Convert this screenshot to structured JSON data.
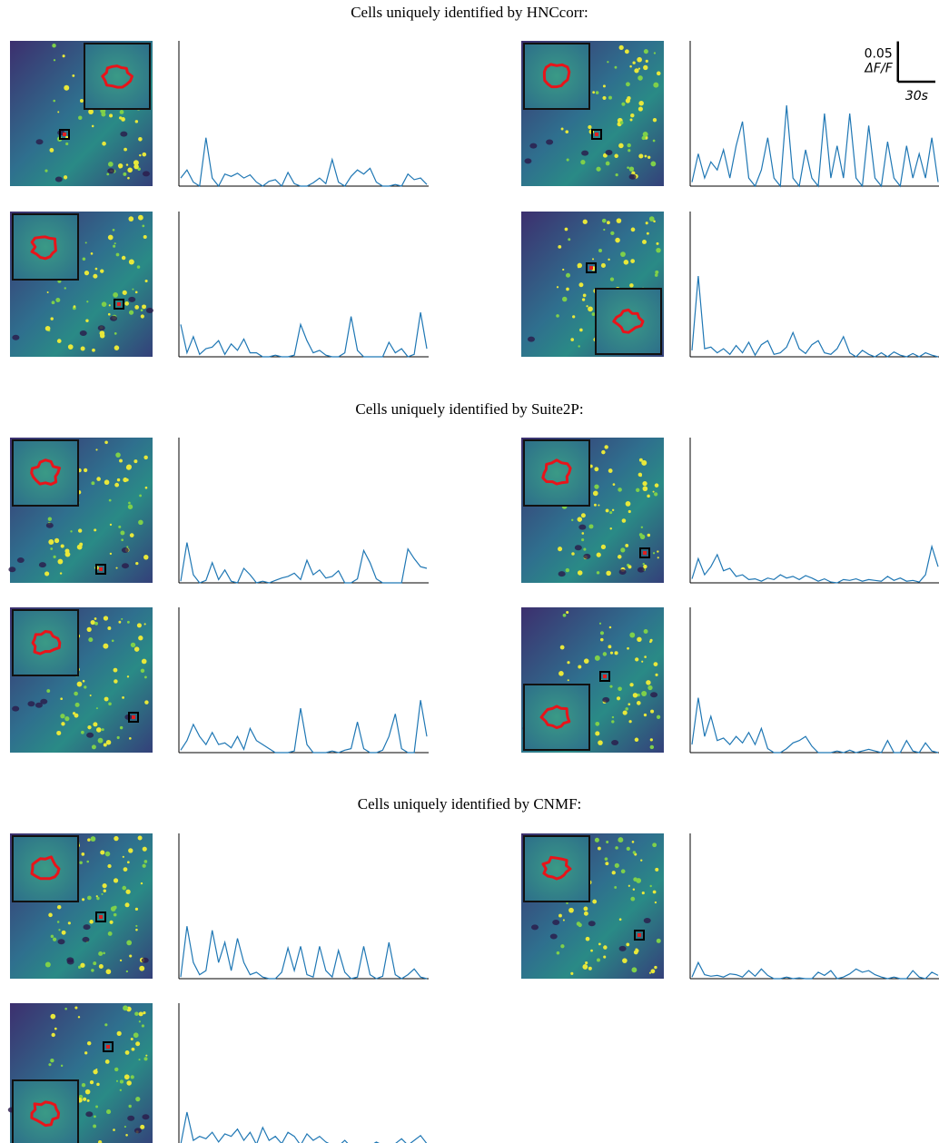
{
  "figure": {
    "xlim": [
      0,
      200
    ],
    "ylim": [
      0,
      0.18
    ],
    "scale_bar": {
      "dff": {
        "value": 0.05,
        "unit": "ΔF/F"
      },
      "time": {
        "value": 30,
        "label": "30s"
      }
    },
    "sections": [
      {
        "title": "Cells uniquely identified by HNCcorr:",
        "cells": [
          {
            "trace": [
              0.01,
              0.02,
              0.005,
              0,
              0.06,
              0.01,
              0,
              0.015,
              0.012,
              0.016,
              0.01,
              0.014,
              0.005,
              0,
              0.006,
              0.008,
              0,
              0.017,
              0.003,
              0,
              0,
              0.004,
              0.01,
              0.003,
              0.033,
              0.005,
              0,
              0.012,
              0.02,
              0.015,
              0.022,
              0.005,
              0,
              0,
              0.002,
              0,
              0.015,
              0.008,
              0.01,
              0.002
            ]
          },
          {
            "trace": [
              0.005,
              0.04,
              0.01,
              0.03,
              0.02,
              0.045,
              0.01,
              0.05,
              0.08,
              0.01,
              0,
              0.02,
              0.06,
              0.01,
              0,
              0.1,
              0.01,
              0,
              0.045,
              0.01,
              0,
              0.09,
              0.01,
              0.05,
              0.01,
              0.09,
              0.01,
              0,
              0.075,
              0.01,
              0,
              0.055,
              0.01,
              0,
              0.05,
              0.01,
              0.04,
              0.01,
              0.06,
              0.005
            ]
          },
          {
            "trace": [
              0.04,
              0.005,
              0.025,
              0.003,
              0.01,
              0.012,
              0.02,
              0.003,
              0.016,
              0.008,
              0.022,
              0.005,
              0.005,
              0,
              0,
              0.002,
              0,
              0,
              0.002,
              0.04,
              0.02,
              0.005,
              0.008,
              0.002,
              0,
              0,
              0.005,
              0.05,
              0.008,
              0,
              0,
              0,
              0,
              0.018,
              0.005,
              0.01,
              0,
              0.003,
              0.055,
              0.01
            ]
          },
          {
            "trace": [
              0.008,
              0.1,
              0.01,
              0.012,
              0.005,
              0.01,
              0.003,
              0.014,
              0.005,
              0.018,
              0.002,
              0.015,
              0.02,
              0.003,
              0.005,
              0.012,
              0.03,
              0.01,
              0.004,
              0.015,
              0.02,
              0.005,
              0.003,
              0.01,
              0.025,
              0.005,
              0,
              0.008,
              0.003,
              0,
              0.005,
              0,
              0.006,
              0.002,
              0,
              0.004,
              0,
              0.005,
              0.002,
              0
            ]
          }
        ]
      },
      {
        "title": "Cells uniquely identified by Suite2P:",
        "cells": [
          {
            "trace": [
              0.002,
              0.05,
              0.01,
              0,
              0.003,
              0.025,
              0.004,
              0.016,
              0.002,
              0,
              0.018,
              0.01,
              0,
              0.002,
              0,
              0.003,
              0.006,
              0.008,
              0.012,
              0.004,
              0.028,
              0.01,
              0.016,
              0.006,
              0.008,
              0.015,
              0,
              0,
              0.005,
              0.04,
              0.025,
              0.005,
              0,
              0,
              0,
              0,
              0.042,
              0.03,
              0.02,
              0.018
            ]
          },
          {
            "trace": [
              0.005,
              0.03,
              0.01,
              0.02,
              0.035,
              0.015,
              0.018,
              0.008,
              0.01,
              0.004,
              0.005,
              0.002,
              0.006,
              0.004,
              0.01,
              0.006,
              0.008,
              0.004,
              0.009,
              0.006,
              0.002,
              0.005,
              0.001,
              0,
              0.004,
              0.003,
              0.005,
              0.002,
              0.004,
              0.003,
              0.002,
              0.008,
              0.003,
              0.006,
              0.002,
              0.003,
              0.001,
              0.01,
              0.045,
              0.02
            ]
          },
          {
            "trace": [
              0.003,
              0.015,
              0.035,
              0.02,
              0.01,
              0.025,
              0.01,
              0.012,
              0.006,
              0.02,
              0.004,
              0.03,
              0.015,
              0.01,
              0.005,
              0,
              0,
              0,
              0.002,
              0.055,
              0.01,
              0,
              0,
              0,
              0.002,
              0,
              0.003,
              0.005,
              0.038,
              0.005,
              0,
              0,
              0.003,
              0.02,
              0.048,
              0.005,
              0,
              0,
              0.065,
              0.02
            ]
          },
          {
            "trace": [
              0.01,
              0.068,
              0.02,
              0.045,
              0.015,
              0.018,
              0.01,
              0.02,
              0.012,
              0.025,
              0.01,
              0.03,
              0.005,
              0,
              0,
              0.005,
              0.012,
              0.015,
              0.02,
              0.008,
              0,
              0,
              0,
              0.002,
              0,
              0.003,
              0,
              0.002,
              0.004,
              0.002,
              0,
              0.015,
              0,
              0,
              0.015,
              0.002,
              0,
              0.012,
              0.002,
              0
            ]
          }
        ]
      },
      {
        "title": "Cells uniquely identified by CNMF:",
        "cells": [
          {
            "trace": [
              0.002,
              0.065,
              0.02,
              0.005,
              0.01,
              0.06,
              0.02,
              0.045,
              0.01,
              0.05,
              0.02,
              0.005,
              0.008,
              0.002,
              0,
              0,
              0.008,
              0.038,
              0.01,
              0.04,
              0.005,
              0.002,
              0.04,
              0.01,
              0.002,
              0.035,
              0.008,
              0,
              0.002,
              0.04,
              0.005,
              0,
              0.003,
              0.045,
              0.005,
              0,
              0.005,
              0.012,
              0.002,
              0
            ]
          },
          {
            "trace": [
              0.002,
              0.02,
              0.005,
              0.003,
              0.004,
              0.002,
              0.006,
              0.005,
              0.002,
              0.01,
              0.003,
              0.012,
              0.004,
              0,
              0,
              0.002,
              0,
              0.001,
              0,
              0,
              0.008,
              0.004,
              0.01,
              0,
              0.002,
              0.006,
              0.012,
              0.008,
              0.01,
              0.005,
              0.002,
              0,
              0.002,
              0,
              0,
              0.01,
              0.002,
              0,
              0.008,
              0.004
            ]
          },
          {
            "trace": [
              0.005,
              0.045,
              0.01,
              0.015,
              0.012,
              0.02,
              0.008,
              0.018,
              0.015,
              0.024,
              0.01,
              0.02,
              0.005,
              0.026,
              0.01,
              0.015,
              0.006,
              0.02,
              0.015,
              0.004,
              0.018,
              0.01,
              0.015,
              0.008,
              0.004,
              0.003,
              0.01,
              0.002,
              0.006,
              0.004,
              0.003,
              0.008,
              0.004,
              0.002,
              0.006,
              0.012,
              0.004,
              0.01,
              0.016,
              0.006
            ]
          }
        ]
      }
    ]
  }
}
